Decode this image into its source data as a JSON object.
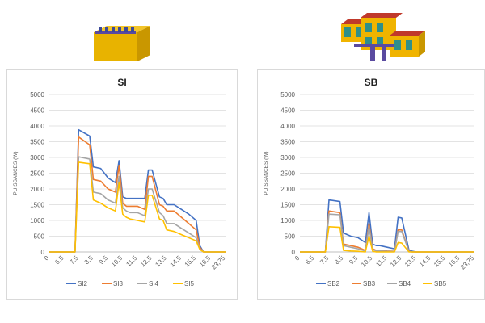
{
  "chart_data": [
    {
      "type": "line",
      "title": "SI",
      "ylabel": "PUISSANCES (W)",
      "xlabel": "",
      "ylim": [
        0,
        5000
      ],
      "yticks": [
        "0",
        "500",
        "1000",
        "1500",
        "2000",
        "2500",
        "3000",
        "3500",
        "4000",
        "4500",
        "5000"
      ],
      "xticks": [
        "0",
        "6,5",
        "7,5",
        "8,5",
        "9,5",
        "10,5",
        "11,5",
        "12,5",
        "13,5",
        "14,5",
        "15,5",
        "16,5",
        "23,75"
      ],
      "grid": true,
      "legend": "bottom",
      "colors": [
        "#4472c4",
        "#ed7d31",
        "#a5a5a5",
        "#ffc000"
      ],
      "x": [
        0,
        6.5,
        7.25,
        7.5,
        8.25,
        8.5,
        9.0,
        9.5,
        10.0,
        10.25,
        10.5,
        10.75,
        11.0,
        11.5,
        12.0,
        12.25,
        12.5,
        13.0,
        13.25,
        13.5,
        14.0,
        14.5,
        15.0,
        15.5,
        15.75,
        16.0,
        16.5,
        23.75
      ],
      "series": [
        {
          "name": "SI2",
          "values": [
            0,
            0,
            0,
            3880,
            3680,
            2700,
            2650,
            2350,
            2200,
            2900,
            1750,
            1700,
            1700,
            1700,
            1700,
            2600,
            2600,
            1750,
            1700,
            1500,
            1500,
            1350,
            1200,
            1000,
            200,
            0,
            0,
            0
          ]
        },
        {
          "name": "SI3",
          "values": [
            0,
            0,
            0,
            3650,
            3400,
            2300,
            2250,
            2000,
            1900,
            2750,
            1550,
            1450,
            1450,
            1450,
            1350,
            2400,
            2400,
            1500,
            1450,
            1300,
            1300,
            1100,
            900,
            700,
            150,
            0,
            0,
            0
          ]
        },
        {
          "name": "SI4",
          "values": [
            0,
            0,
            0,
            3020,
            2950,
            1900,
            1850,
            1650,
            1550,
            2400,
            1400,
            1300,
            1250,
            1250,
            1150,
            2000,
            2000,
            1250,
            1150,
            900,
            900,
            750,
            600,
            450,
            100,
            0,
            0,
            0
          ]
        },
        {
          "name": "SI5",
          "values": [
            0,
            0,
            0,
            2850,
            2800,
            1650,
            1550,
            1400,
            1300,
            2200,
            1200,
            1100,
            1050,
            1000,
            950,
            1800,
            1800,
            1050,
            1000,
            700,
            650,
            550,
            450,
            350,
            80,
            0,
            0,
            0
          ]
        }
      ]
    },
    {
      "type": "line",
      "title": "SB",
      "ylabel": "PUISSANCES (W)",
      "xlabel": "",
      "ylim": [
        0,
        5000
      ],
      "yticks": [
        "0",
        "500",
        "1000",
        "1500",
        "2000",
        "2500",
        "3000",
        "3500",
        "4000",
        "4500",
        "5000"
      ],
      "xticks": [
        "0",
        "6,5",
        "7,5",
        "8,5",
        "9,5",
        "10,5",
        "11,5",
        "12,5",
        "13,5",
        "14,5",
        "15,5",
        "16,5",
        "23,75"
      ],
      "grid": true,
      "legend": "bottom",
      "colors": [
        "#4472c4",
        "#ed7d31",
        "#a5a5a5",
        "#ffc000"
      ],
      "x": [
        0,
        6.5,
        7.25,
        7.5,
        8.25,
        8.5,
        9.0,
        9.5,
        10.0,
        10.25,
        10.5,
        10.75,
        11.0,
        11.5,
        12.0,
        12.25,
        12.5,
        13.0,
        13.25,
        13.5,
        14.0,
        14.5,
        15.0,
        15.5,
        15.75,
        16.0,
        16.5,
        23.75
      ],
      "series": [
        {
          "name": "SB2",
          "values": [
            0,
            0,
            0,
            1650,
            1600,
            600,
            500,
            450,
            300,
            1250,
            250,
            200,
            200,
            150,
            100,
            1100,
            1080,
            50,
            20,
            0,
            0,
            0,
            0,
            0,
            0,
            0,
            0,
            0
          ]
        },
        {
          "name": "SB3",
          "values": [
            0,
            0,
            0,
            1300,
            1250,
            250,
            200,
            150,
            50,
            900,
            100,
            50,
            50,
            30,
            20,
            700,
            700,
            20,
            0,
            0,
            0,
            0,
            0,
            0,
            0,
            0,
            0,
            0
          ]
        },
        {
          "name": "SB4",
          "values": [
            0,
            0,
            0,
            1200,
            1180,
            200,
            150,
            100,
            30,
            800,
            80,
            30,
            30,
            20,
            10,
            650,
            650,
            10,
            0,
            0,
            0,
            0,
            0,
            0,
            0,
            0,
            0,
            0
          ]
        },
        {
          "name": "SB5",
          "values": [
            0,
            0,
            0,
            800,
            780,
            50,
            30,
            20,
            0,
            500,
            20,
            0,
            0,
            0,
            0,
            300,
            280,
            0,
            0,
            0,
            0,
            0,
            0,
            0,
            0,
            0,
            0,
            0
          ]
        }
      ]
    }
  ]
}
